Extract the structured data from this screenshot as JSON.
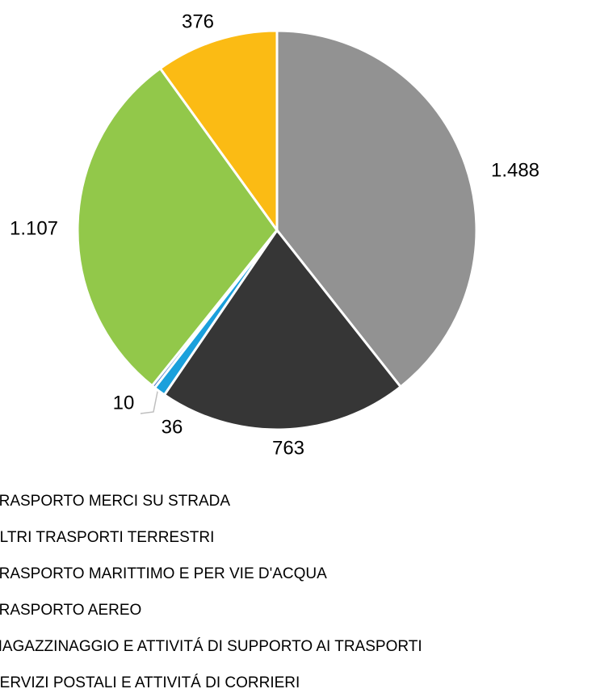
{
  "chart_data": {
    "type": "pie",
    "categories": [
      "TRASPORTO MERCI SU STRADA",
      "ALTRI TRASPORTI TERRESTRI",
      "TRASPORTO MARITTIMO E PER VIE D'ACQUA",
      "TRASPORTO AEREO",
      "MAGAZZINAGGIO E ATTIVITÁ DI SUPPORTO AI TRASPORTI",
      "SERVIZI POSTALI E ATTIVITÁ DI CORRIERI"
    ],
    "values": [
      1488,
      763,
      36,
      10,
      1107,
      376
    ],
    "value_labels": [
      "1.488",
      "763",
      "36",
      "10",
      "1.107",
      "376"
    ],
    "colors": [
      "#929292",
      "#363636",
      "#1aa0dc",
      "#4472c4",
      "#92c84a",
      "#fbbb14"
    ]
  }
}
